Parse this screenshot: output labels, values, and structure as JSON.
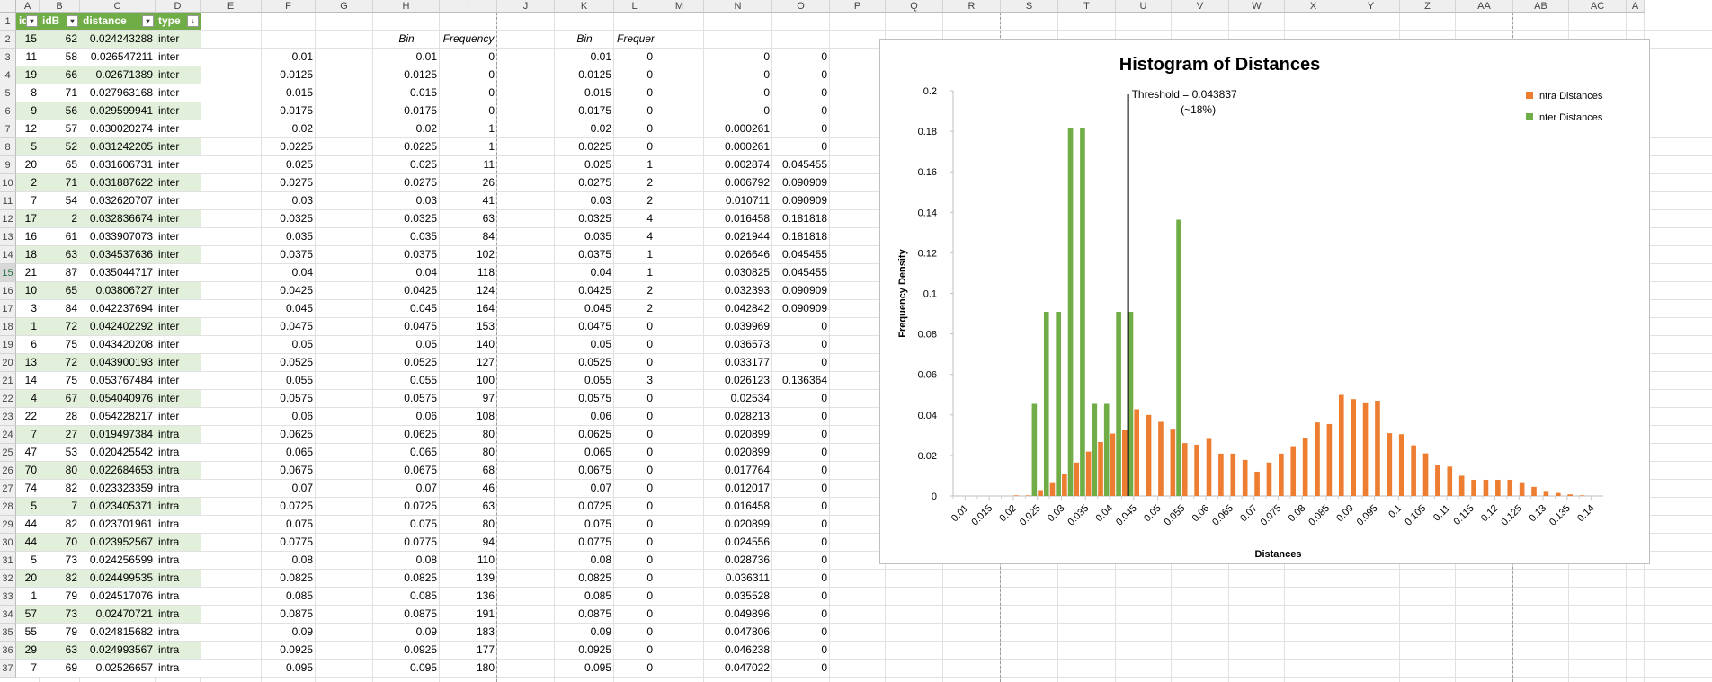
{
  "columns": [
    "A",
    "B",
    "C",
    "D",
    "E",
    "F",
    "G",
    "H",
    "I",
    "J",
    "K",
    "L",
    "M",
    "N",
    "O",
    "P",
    "Q",
    "R",
    "S",
    "T",
    "U",
    "V",
    "W",
    "X",
    "Y",
    "Z",
    "AA",
    "AB",
    "AC",
    "A"
  ],
  "table": {
    "headers": [
      "idA",
      "idB",
      "distance",
      "type"
    ],
    "rows": [
      [
        15,
        62,
        "0.024243288",
        "inter"
      ],
      [
        11,
        58,
        "0.026547211",
        "inter"
      ],
      [
        19,
        66,
        "0.02671389",
        "inter"
      ],
      [
        8,
        71,
        "0.027963168",
        "inter"
      ],
      [
        9,
        56,
        "0.029599941",
        "inter"
      ],
      [
        12,
        57,
        "0.030020274",
        "inter"
      ],
      [
        5,
        52,
        "0.031242205",
        "inter"
      ],
      [
        20,
        65,
        "0.031606731",
        "inter"
      ],
      [
        2,
        71,
        "0.031887622",
        "inter"
      ],
      [
        7,
        54,
        "0.032620707",
        "inter"
      ],
      [
        17,
        2,
        "0.032836674",
        "inter"
      ],
      [
        16,
        61,
        "0.033907073",
        "inter"
      ],
      [
        18,
        63,
        "0.034537636",
        "inter"
      ],
      [
        21,
        87,
        "0.035044717",
        "inter"
      ],
      [
        10,
        65,
        "0.03806727",
        "inter"
      ],
      [
        3,
        84,
        "0.042237694",
        "inter"
      ],
      [
        1,
        72,
        "0.042402292",
        "inter"
      ],
      [
        6,
        75,
        "0.043420208",
        "inter"
      ],
      [
        13,
        72,
        "0.043900193",
        "inter"
      ],
      [
        14,
        75,
        "0.053767484",
        "inter"
      ],
      [
        4,
        67,
        "0.054040976",
        "inter"
      ],
      [
        22,
        28,
        "0.054228217",
        "inter"
      ],
      [
        7,
        27,
        "0.019497384",
        "intra"
      ],
      [
        47,
        53,
        "0.020425542",
        "intra"
      ],
      [
        70,
        80,
        "0.022684653",
        "intra"
      ],
      [
        74,
        82,
        "0.023323359",
        "intra"
      ],
      [
        5,
        7,
        "0.023405371",
        "intra"
      ],
      [
        44,
        82,
        "0.023701961",
        "intra"
      ],
      [
        44,
        70,
        "0.023952567",
        "intra"
      ],
      [
        5,
        73,
        "0.024256599",
        "intra"
      ],
      [
        20,
        82,
        "0.024499535",
        "intra"
      ],
      [
        1,
        79,
        "0.024517076",
        "intra"
      ],
      [
        57,
        73,
        "0.02470721",
        "intra"
      ],
      [
        55,
        79,
        "0.024815682",
        "intra"
      ],
      [
        29,
        63,
        "0.024993567",
        "intra"
      ],
      [
        7,
        69,
        "0.02526657",
        "intra"
      ]
    ]
  },
  "colF": [
    "0.01",
    "0.0125",
    "0.015",
    "0.0175",
    "0.02",
    "0.0225",
    "0.025",
    "0.0275",
    "0.03",
    "0.0325",
    "0.035",
    "0.0375",
    "0.04",
    "0.0425",
    "0.045",
    "0.0475",
    "0.05",
    "0.0525",
    "0.055",
    "0.0575",
    "0.06",
    "0.0625",
    "0.065",
    "0.0675",
    "0.07",
    "0.0725",
    "0.075",
    "0.0775",
    "0.08",
    "0.0825",
    "0.085",
    "0.0875",
    "0.09",
    "0.0925",
    "0.095"
  ],
  "freq_intra": {
    "headers": [
      "Bin",
      "Frequency"
    ],
    "bins": [
      "0.01",
      "0.0125",
      "0.015",
      "0.0175",
      "0.02",
      "0.0225",
      "0.025",
      "0.0275",
      "0.03",
      "0.0325",
      "0.035",
      "0.0375",
      "0.04",
      "0.0425",
      "0.045",
      "0.0475",
      "0.05",
      "0.0525",
      "0.055",
      "0.0575",
      "0.06",
      "0.0625",
      "0.065",
      "0.0675",
      "0.07",
      "0.0725",
      "0.075",
      "0.0775",
      "0.08",
      "0.0825",
      "0.085",
      "0.0875",
      "0.09",
      "0.0925",
      "0.095"
    ],
    "freq": [
      "0",
      "0",
      "0",
      "0",
      "1",
      "1",
      "11",
      "26",
      "41",
      "63",
      "84",
      "102",
      "118",
      "124",
      "164",
      "153",
      "140",
      "127",
      "100",
      "97",
      "108",
      "80",
      "80",
      "68",
      "46",
      "63",
      "80",
      "94",
      "110",
      "139",
      "136",
      "191",
      "183",
      "177",
      "180"
    ]
  },
  "freq_inter": {
    "headers": [
      "Bin",
      "Frequency"
    ],
    "bins": [
      "0.01",
      "0.0125",
      "0.015",
      "0.0175",
      "0.02",
      "0.0225",
      "0.025",
      "0.0275",
      "0.03",
      "0.0325",
      "0.035",
      "0.0375",
      "0.04",
      "0.0425",
      "0.045",
      "0.0475",
      "0.05",
      "0.0525",
      "0.055",
      "0.0575",
      "0.06",
      "0.0625",
      "0.065",
      "0.0675",
      "0.07",
      "0.0725",
      "0.075",
      "0.0775",
      "0.08",
      "0.0825",
      "0.085",
      "0.0875",
      "0.09",
      "0.0925",
      "0.095"
    ],
    "freq": [
      "0",
      "0",
      "0",
      "0",
      "0",
      "0",
      "1",
      "2",
      "2",
      "4",
      "4",
      "1",
      "1",
      "2",
      "2",
      "0",
      "0",
      "0",
      "3",
      "0",
      "0",
      "0",
      "0",
      "0",
      "0",
      "0",
      "0",
      "0",
      "0",
      "0",
      "0",
      "0",
      "0",
      "0",
      "0"
    ]
  },
  "colN": [
    "0",
    "0",
    "0",
    "0",
    "0.000261",
    "0.000261",
    "0.002874",
    "0.006792",
    "0.010711",
    "0.016458",
    "0.021944",
    "0.026646",
    "0.030825",
    "0.032393",
    "0.042842",
    "0.039969",
    "0.036573",
    "0.033177",
    "0.026123",
    "0.02534",
    "0.028213",
    "0.020899",
    "0.020899",
    "0.017764",
    "0.012017",
    "0.016458",
    "0.020899",
    "0.024556",
    "0.028736",
    "0.036311",
    "0.035528",
    "0.049896",
    "0.047806",
    "0.046238",
    "0.047022"
  ],
  "colO": [
    "0",
    "0",
    "0",
    "0",
    "0",
    "0",
    "0.045455",
    "0.090909",
    "0.090909",
    "0.181818",
    "0.181818",
    "0.045455",
    "0.045455",
    "0.090909",
    "0.090909",
    "0",
    "0",
    "0",
    "0.136364",
    "0",
    "0",
    "0",
    "0",
    "0",
    "0",
    "0",
    "0",
    "0",
    "0",
    "0",
    "0",
    "0",
    "0",
    "0",
    "0"
  ],
  "chart_data": {
    "type": "bar",
    "title": "Histogram of Distances",
    "xlabel": "Distances",
    "ylabel": "Frequency Density",
    "ylim": [
      0,
      0.2
    ],
    "yticks": [
      "0",
      "0.02",
      "0.04",
      "0.06",
      "0.08",
      "0.1",
      "0.12",
      "0.14",
      "0.16",
      "0.18",
      "0.2"
    ],
    "xtick_labels": [
      "0.01",
      "0.015",
      "0.02",
      "0.025",
      "0.03",
      "0.035",
      "0.04",
      "0.045",
      "0.05",
      "0.055",
      "0.06",
      "0.065",
      "0.07",
      "0.075",
      "0.08",
      "0.085",
      "0.09",
      "0.095",
      "0.1",
      "0.105",
      "0.11",
      "0.115",
      "0.12",
      "0.125",
      "0.13",
      "0.135",
      "0.14"
    ],
    "series": [
      {
        "name": "Intra Distances",
        "color": "#ed7d31",
        "values": [
          0,
          0,
          0,
          0,
          0.0003,
          0.0003,
          0.0029,
          0.0068,
          0.0107,
          0.0165,
          0.0219,
          0.0266,
          0.0308,
          0.0324,
          0.0428,
          0.04,
          0.0366,
          0.0332,
          0.0261,
          0.0253,
          0.0282,
          0.0209,
          0.0209,
          0.0178,
          0.012,
          0.0165,
          0.0209,
          0.0246,
          0.0287,
          0.0363,
          0.0355,
          0.0499,
          0.0478,
          0.0462,
          0.047,
          0.031,
          0.0305,
          0.025,
          0.021,
          0.0155,
          0.0145,
          0.01,
          0.008,
          0.008,
          0.008,
          0.008,
          0.0068,
          0.0045,
          0.0025,
          0.0015,
          0.0008,
          0.0003
        ]
      },
      {
        "name": "Inter Distances",
        "color": "#70ad47",
        "values": [
          0,
          0,
          0,
          0,
          0,
          0,
          0.045455,
          0.090909,
          0.090909,
          0.181818,
          0.181818,
          0.045455,
          0.045455,
          0.090909,
          0.090909,
          0,
          0,
          0,
          0.136364,
          0,
          0,
          0,
          0,
          0,
          0,
          0,
          0,
          0,
          0,
          0,
          0,
          0,
          0,
          0,
          0,
          0,
          0,
          0,
          0,
          0,
          0,
          0,
          0,
          0,
          0,
          0,
          0,
          0,
          0,
          0,
          0,
          0
        ]
      }
    ],
    "threshold": {
      "value": 0.043837,
      "label": "Threshold = 0.043837",
      "sublabel": "(~18%)"
    },
    "legend": "top-right",
    "grid": false
  }
}
